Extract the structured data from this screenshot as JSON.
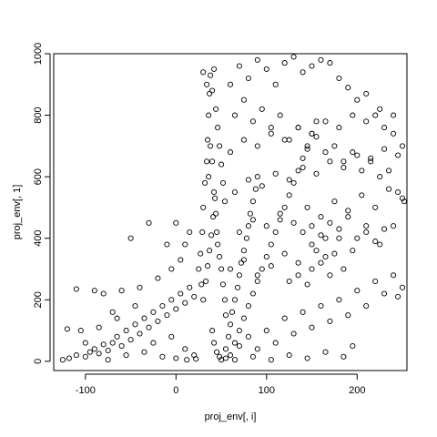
{
  "chart_data": {
    "type": "scatter",
    "title": "",
    "xlabel": "proj_env[, i]",
    "ylabel": "proj_env[, 1]",
    "xlim": [
      -135,
      255
    ],
    "ylim": [
      -30,
      1000
    ],
    "xticks": [
      -100,
      0,
      100,
      200
    ],
    "yticks": [
      0,
      200,
      400,
      600,
      800,
      1000
    ],
    "grid": false,
    "legend": "none",
    "marker": "open-circle",
    "series": [
      {
        "points": [
          [
            -125,
            5
          ],
          [
            -118,
            10
          ],
          [
            -110,
            20
          ],
          [
            -100,
            15
          ],
          [
            -95,
            30
          ],
          [
            -90,
            40
          ],
          [
            -85,
            25
          ],
          [
            -80,
            55
          ],
          [
            -75,
            35
          ],
          [
            -70,
            60
          ],
          [
            -65,
            80
          ],
          [
            -60,
            50
          ],
          [
            -55,
            100
          ],
          [
            -50,
            70
          ],
          [
            -45,
            120
          ],
          [
            -40,
            90
          ],
          [
            -35,
            140
          ],
          [
            -30,
            110
          ],
          [
            -25,
            160
          ],
          [
            -20,
            130
          ],
          [
            -15,
            180
          ],
          [
            -10,
            150
          ],
          [
            -5,
            200
          ],
          [
            0,
            170
          ],
          [
            5,
            220
          ],
          [
            10,
            190
          ],
          [
            15,
            240
          ],
          [
            20,
            210
          ],
          [
            -60,
            230
          ],
          [
            -90,
            230
          ],
          [
            -110,
            235
          ],
          [
            -80,
            220
          ],
          [
            -40,
            240
          ],
          [
            -20,
            270
          ],
          [
            -5,
            300
          ],
          [
            5,
            330
          ],
          [
            10,
            380
          ],
          [
            15,
            420
          ],
          [
            -50,
            400
          ],
          [
            -30,
            450
          ],
          [
            -10,
            380
          ],
          [
            0,
            450
          ],
          [
            -120,
            105
          ],
          [
            -105,
            100
          ],
          [
            -70,
            160
          ],
          [
            -45,
            180
          ],
          [
            -25,
            60
          ],
          [
            -5,
            80
          ],
          [
            10,
            40
          ],
          [
            20,
            20
          ],
          [
            -100,
            60
          ],
          [
            -85,
            110
          ],
          [
            -65,
            140
          ],
          [
            -55,
            20
          ],
          [
            -35,
            30
          ],
          [
            -15,
            15
          ],
          [
            0,
            10
          ],
          [
            12,
            5
          ],
          [
            22,
            8
          ],
          [
            -75,
            5
          ],
          [
            25,
            300
          ],
          [
            27,
            350
          ],
          [
            29,
            420
          ],
          [
            30,
            500
          ],
          [
            32,
            580
          ],
          [
            34,
            650
          ],
          [
            35,
            720
          ],
          [
            36,
            800
          ],
          [
            37,
            870
          ],
          [
            38,
            930
          ],
          [
            40,
            650
          ],
          [
            42,
            550
          ],
          [
            44,
            480
          ],
          [
            45,
            420
          ],
          [
            46,
            380
          ],
          [
            48,
            340
          ],
          [
            50,
            300
          ],
          [
            52,
            250
          ],
          [
            54,
            200
          ],
          [
            55,
            150
          ],
          [
            28,
            250
          ],
          [
            30,
            200
          ],
          [
            33,
            260
          ],
          [
            35,
            310
          ],
          [
            37,
            360
          ],
          [
            39,
            410
          ],
          [
            41,
            470
          ],
          [
            43,
            530
          ],
          [
            36,
            600
          ],
          [
            38,
            700
          ],
          [
            40,
            880
          ],
          [
            42,
            950
          ],
          [
            30,
            940
          ],
          [
            34,
            900
          ],
          [
            44,
            820
          ],
          [
            46,
            760
          ],
          [
            48,
            700
          ],
          [
            50,
            640
          ],
          [
            52,
            580
          ],
          [
            54,
            520
          ],
          [
            40,
            100
          ],
          [
            42,
            60
          ],
          [
            45,
            30
          ],
          [
            48,
            15
          ],
          [
            50,
            5
          ],
          [
            55,
            40
          ],
          [
            58,
            80
          ],
          [
            60,
            120
          ],
          [
            62,
            160
          ],
          [
            65,
            200
          ],
          [
            68,
            240
          ],
          [
            70,
            280
          ],
          [
            72,
            320
          ],
          [
            75,
            360
          ],
          [
            78,
            400
          ],
          [
            80,
            440
          ],
          [
            82,
            480
          ],
          [
            85,
            520
          ],
          [
            88,
            560
          ],
          [
            90,
            600
          ],
          [
            60,
            20
          ],
          [
            65,
            60
          ],
          [
            70,
            100
          ],
          [
            75,
            140
          ],
          [
            80,
            180
          ],
          [
            85,
            220
          ],
          [
            90,
            260
          ],
          [
            95,
            300
          ],
          [
            100,
            340
          ],
          [
            105,
            380
          ],
          [
            110,
            420
          ],
          [
            115,
            460
          ],
          [
            120,
            500
          ],
          [
            125,
            540
          ],
          [
            130,
            580
          ],
          [
            135,
            620
          ],
          [
            140,
            660
          ],
          [
            145,
            700
          ],
          [
            150,
            740
          ],
          [
            155,
            780
          ],
          [
            60,
            900
          ],
          [
            70,
            960
          ],
          [
            80,
            920
          ],
          [
            90,
            980
          ],
          [
            100,
            950
          ],
          [
            110,
            900
          ],
          [
            120,
            970
          ],
          [
            130,
            990
          ],
          [
            140,
            940
          ],
          [
            150,
            960
          ],
          [
            160,
            980
          ],
          [
            170,
            970
          ],
          [
            180,
            920
          ],
          [
            190,
            890
          ],
          [
            200,
            850
          ],
          [
            210,
            870
          ],
          [
            220,
            800
          ],
          [
            230,
            760
          ],
          [
            240,
            740
          ],
          [
            250,
            700
          ],
          [
            65,
            800
          ],
          [
            75,
            850
          ],
          [
            85,
            780
          ],
          [
            95,
            820
          ],
          [
            105,
            760
          ],
          [
            115,
            800
          ],
          [
            125,
            720
          ],
          [
            135,
            760
          ],
          [
            145,
            690
          ],
          [
            155,
            730
          ],
          [
            165,
            680
          ],
          [
            175,
            700
          ],
          [
            185,
            650
          ],
          [
            195,
            680
          ],
          [
            205,
            620
          ],
          [
            215,
            660
          ],
          [
            225,
            600
          ],
          [
            235,
            620
          ],
          [
            245,
            550
          ],
          [
            252,
            520
          ],
          [
            70,
            50
          ],
          [
            80,
            80
          ],
          [
            90,
            40
          ],
          [
            100,
            100
          ],
          [
            110,
            60
          ],
          [
            120,
            140
          ],
          [
            130,
            90
          ],
          [
            140,
            160
          ],
          [
            150,
            110
          ],
          [
            160,
            180
          ],
          [
            170,
            130
          ],
          [
            180,
            200
          ],
          [
            190,
            150
          ],
          [
            200,
            230
          ],
          [
            210,
            180
          ],
          [
            220,
            260
          ],
          [
            230,
            220
          ],
          [
            240,
            280
          ],
          [
            250,
            240
          ],
          [
            245,
            210
          ],
          [
            60,
            300
          ],
          [
            75,
            330
          ],
          [
            90,
            280
          ],
          [
            105,
            310
          ],
          [
            120,
            350
          ],
          [
            135,
            320
          ],
          [
            150,
            380
          ],
          [
            165,
            340
          ],
          [
            180,
            400
          ],
          [
            195,
            360
          ],
          [
            210,
            420
          ],
          [
            225,
            380
          ],
          [
            240,
            440
          ],
          [
            70,
            420
          ],
          [
            85,
            460
          ],
          [
            100,
            440
          ],
          [
            115,
            480
          ],
          [
            130,
            450
          ],
          [
            145,
            500
          ],
          [
            160,
            470
          ],
          [
            175,
            520
          ],
          [
            190,
            490
          ],
          [
            205,
            540
          ],
          [
            220,
            500
          ],
          [
            235,
            560
          ],
          [
            250,
            530
          ],
          [
            65,
            550
          ],
          [
            80,
            590
          ],
          [
            95,
            570
          ],
          [
            110,
            610
          ],
          [
            125,
            590
          ],
          [
            140,
            630
          ],
          [
            155,
            610
          ],
          [
            170,
            650
          ],
          [
            185,
            630
          ],
          [
            200,
            670
          ],
          [
            215,
            650
          ],
          [
            230,
            690
          ],
          [
            245,
            670
          ],
          [
            60,
            680
          ],
          [
            75,
            720
          ],
          [
            90,
            700
          ],
          [
            105,
            740
          ],
          [
            120,
            720
          ],
          [
            135,
            760
          ],
          [
            150,
            740
          ],
          [
            165,
            780
          ],
          [
            180,
            760
          ],
          [
            195,
            800
          ],
          [
            210,
            780
          ],
          [
            225,
            820
          ],
          [
            240,
            800
          ],
          [
            55,
            10
          ],
          [
            65,
            5
          ],
          [
            85,
            15
          ],
          [
            105,
            5
          ],
          [
            125,
            20
          ],
          [
            145,
            10
          ],
          [
            165,
            30
          ],
          [
            185,
            15
          ],
          [
            195,
            50
          ],
          [
            150,
            300
          ],
          [
            160,
            320
          ],
          [
            170,
            280
          ],
          [
            155,
            360
          ],
          [
            165,
            400
          ],
          [
            175,
            350
          ],
          [
            185,
            300
          ],
          [
            145,
            250
          ],
          [
            135,
            280
          ],
          [
            125,
            260
          ],
          [
            140,
            420
          ],
          [
            150,
            440
          ],
          [
            160,
            410
          ],
          [
            170,
            450
          ],
          [
            180,
            430
          ],
          [
            190,
            470
          ],
          [
            200,
            400
          ],
          [
            210,
            440
          ],
          [
            220,
            390
          ],
          [
            230,
            430
          ]
        ]
      }
    ]
  }
}
